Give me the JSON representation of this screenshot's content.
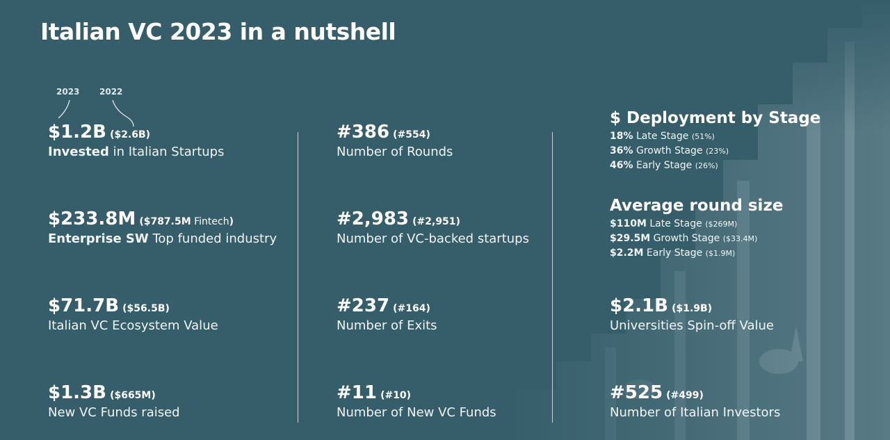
{
  "title": "Italian VC 2023 in a nutshell",
  "year_labels": {
    "current": "2023",
    "previous": "2022"
  },
  "col1": [
    {
      "value": "$1.2B",
      "prev": "($2.6B)",
      "desc_bold": "Invested",
      "desc": " in Italian Startups"
    },
    {
      "value": "$233.8M",
      "prev_bold": "($787.5M",
      "prev_plain": " Fintech",
      "prev_close": ")",
      "desc_bold": "Enterprise SW",
      "desc": " Top funded industry"
    },
    {
      "value": "$71.7B",
      "prev": "($56.5B)",
      "desc": "Italian VC Ecosystem Value"
    },
    {
      "value": "$1.3B",
      "prev": "($665M)",
      "desc": "New VC Funds raised"
    }
  ],
  "col2": [
    {
      "value": "#386",
      "prev": "(#554)",
      "desc": "Number of Rounds"
    },
    {
      "value": "#2,983",
      "prev": "(#2,951)",
      "desc": "Number of VC-backed startups"
    },
    {
      "value": "#237",
      "prev": "(#164)",
      "desc": "Number of Exits"
    },
    {
      "value": "#11",
      "prev": "(#10)",
      "desc": "Number of New VC Funds"
    }
  ],
  "deployment": {
    "title": "$ Deployment by Stage",
    "rows": [
      {
        "bold": "18%",
        "label": " Late Stage ",
        "prev": "(51%)"
      },
      {
        "bold": "36%",
        "label": " Growth Stage ",
        "prev": "(23%)"
      },
      {
        "bold": "46%",
        "label": " Early Stage ",
        "prev": "(26%)"
      }
    ]
  },
  "round_size": {
    "title": "Average round size",
    "rows": [
      {
        "bold": "$110M",
        "label": " Late Stage ",
        "prev": "($269M)"
      },
      {
        "bold": "$29.5M",
        "label": " Growth Stage ",
        "prev": "($33.4M)"
      },
      {
        "bold": "$2.2M",
        "label": " Early Stage ",
        "prev": "($1.9M)"
      }
    ]
  },
  "col3": [
    {
      "value": "$2.1B",
      "prev": "($1.9B)",
      "desc": "Universities Spin-off Value"
    },
    {
      "value": "#525",
      "prev": "(#499)",
      "desc": "Number of Italian Investors"
    }
  ],
  "colors": {
    "background": "#355d6a",
    "text": "#ffffff",
    "divider": "#c7d3d7"
  }
}
